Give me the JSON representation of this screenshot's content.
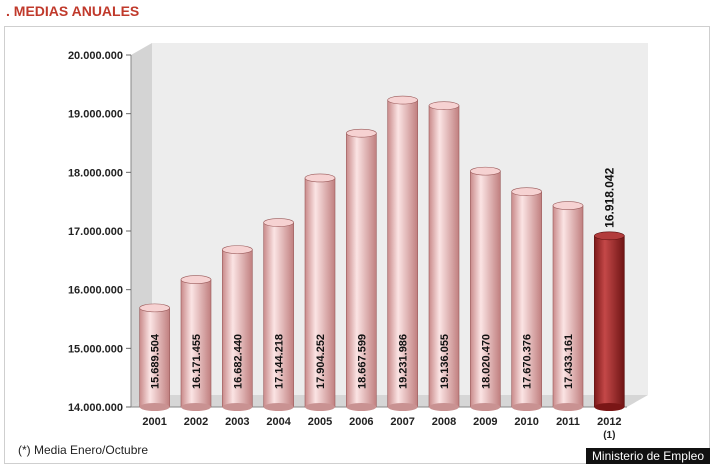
{
  "header": {
    "title": ". MEDIAS ANUALES"
  },
  "footnote": "(*) Media Enero/Octubre",
  "credit": "Ministerio de Empleo",
  "colors": {
    "bar": "#e8a8a8",
    "bar_highlight": "#a52a2a",
    "wall": "#ededed",
    "floor": "#d6d6d6"
  },
  "chart_data": {
    "type": "bar",
    "categories": [
      "2001",
      "2002",
      "2003",
      "2004",
      "2005",
      "2006",
      "2007",
      "2008",
      "2009",
      "2010",
      "2011",
      "2012"
    ],
    "category_sublabels": [
      "",
      "",
      "",
      "",
      "",
      "",
      "",
      "",
      "",
      "",
      "",
      "(1)"
    ],
    "values": [
      15689504,
      16171455,
      16682440,
      17144218,
      17904252,
      18667599,
      19231986,
      19136055,
      18020470,
      17670376,
      17433161,
      16918042
    ],
    "data_labels": [
      "15.689.504",
      "16.171.455",
      "16.682.440",
      "17.144.218",
      "17.904.252",
      "18.667.599",
      "19.231.986",
      "19.136.055",
      "18.020.470",
      "17.670.376",
      "17.433.161",
      "16.918.042"
    ],
    "highlight_index": 11,
    "ylim": [
      14000000,
      20000000
    ],
    "yticks": [
      14000000,
      15000000,
      16000000,
      17000000,
      18000000,
      19000000,
      20000000
    ],
    "ytick_labels": [
      "14.000.000",
      "15.000.000",
      "16.000.000",
      "17.000.000",
      "18.000.000",
      "19.000.000",
      "20.000.000"
    ],
    "title": "",
    "xlabel": "",
    "ylabel": "",
    "grid": false,
    "legend": "none"
  }
}
